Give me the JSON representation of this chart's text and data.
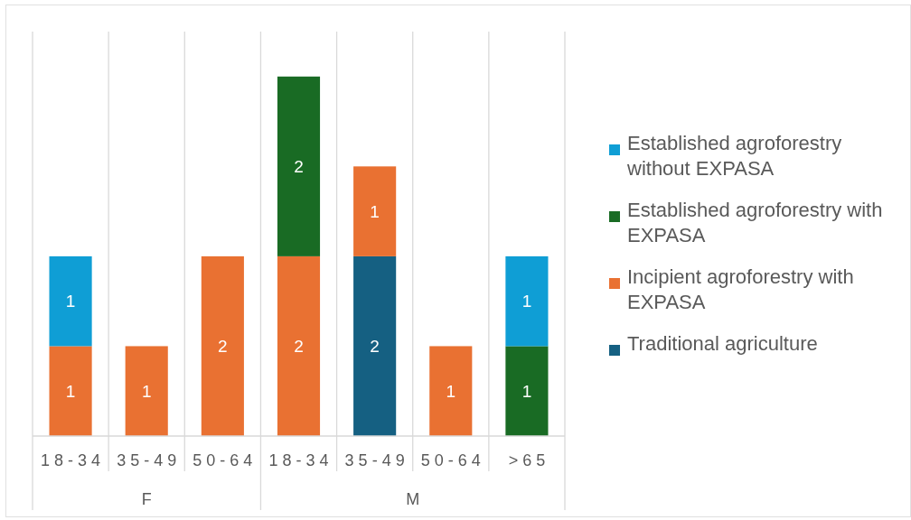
{
  "chart_data": {
    "type": "bar",
    "categories": [
      "18-34",
      "35-49",
      "50-64",
      "18-34",
      "35-49",
      "50-64",
      ">65"
    ],
    "series": [
      {
        "name": "Traditional agriculture",
        "color": "#156082",
        "values": [
          null,
          null,
          null,
          null,
          2,
          null,
          null
        ]
      },
      {
        "name": "Incipient agroforestry with EXPASA",
        "color": "#e97132",
        "values": [
          1,
          1,
          2,
          2,
          1,
          1,
          null
        ]
      },
      {
        "name": "Established agroforestry with EXPASA",
        "color": "#196b24",
        "values": [
          null,
          null,
          null,
          2,
          null,
          null,
          1
        ]
      },
      {
        "name": "Established agroforestry without EXPASA",
        "color": "#0f9ed5",
        "values": [
          1,
          null,
          null,
          null,
          null,
          null,
          1
        ]
      }
    ],
    "stacked": true,
    "data_labels": true,
    "grid": "x",
    "legend": "right",
    "annotations": [
      "F",
      "M"
    ]
  }
}
